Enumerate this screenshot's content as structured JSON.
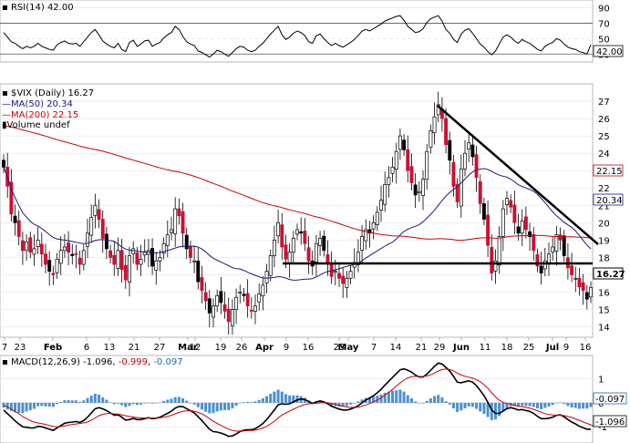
{
  "chart_data": {
    "type": "candlestick",
    "symbol_label": "$VIX (Daily)",
    "last": "16.27",
    "ma50_label": "MA(50)",
    "ma50_value": "20.34",
    "ma200_label": "MA(200)",
    "ma200_value": "22.15",
    "volume_label": "Volume undef",
    "x_ticks": [
      "7",
      "23",
      "Feb",
      "6",
      "13",
      "21",
      "27",
      "Mar",
      "12",
      "19",
      "26",
      "Apr",
      "9",
      "16",
      "23",
      "May",
      "7",
      "14",
      "21",
      "29",
      "Jun",
      "11",
      "18",
      "25",
      "Jul",
      "9",
      "16"
    ],
    "y_ticks": [
      "27",
      "26",
      "25",
      "24",
      "23",
      "22",
      "21",
      "20",
      "19",
      "18",
      "17",
      "16",
      "15",
      "14"
    ],
    "ylim": [
      13.4,
      28.0
    ],
    "closes": [
      23.2,
      22.1,
      20.5,
      20.0,
      19.2,
      18.4,
      18.9,
      18.3,
      18.5,
      19.0,
      18.2,
      17.6,
      17.2,
      17.0,
      17.9,
      18.4,
      18.6,
      18.3,
      18.1,
      18.2,
      17.6,
      18.4,
      19.4,
      20.3,
      21.0,
      20.2,
      19.1,
      18.5,
      18.0,
      17.6,
      18.4,
      17.3,
      16.7,
      18.1,
      18.5,
      17.6,
      17.9,
      18.3,
      18.4,
      17.5,
      17.8,
      18.0,
      18.8,
      19.3,
      19.6,
      20.8,
      20.4,
      19.4,
      18.5,
      18.0,
      17.8,
      16.6,
      16.1,
      15.5,
      14.8,
      15.2,
      15.8,
      15.4,
      14.9,
      14.3,
      15.0,
      15.7,
      16.0,
      15.8,
      15.2,
      14.9,
      15.2,
      15.9,
      16.4,
      17.2,
      18.1,
      19.0,
      20.0,
      18.6,
      17.9,
      18.3,
      19.1,
      19.6,
      19.4,
      18.8,
      17.8,
      17.5,
      18.8,
      19.1,
      18.4,
      17.6,
      16.9,
      17.2,
      16.8,
      16.5,
      16.8,
      17.2,
      17.7,
      18.3,
      19.2,
      19.6,
      19.4,
      20.0,
      20.6,
      21.3,
      22.2,
      22.6,
      23.2,
      24.1,
      25.0,
      24.2,
      23.0,
      22.3,
      21.6,
      21.8,
      22.5,
      24.1,
      25.3,
      26.1,
      26.8,
      26.0,
      24.5,
      23.6,
      22.1,
      21.2,
      23.1,
      24.0,
      24.6,
      23.8,
      22.6,
      21.1,
      20.2,
      18.7,
      17.1,
      17.8,
      19.2,
      20.8,
      21.4,
      20.9,
      20.0,
      19.4,
      20.1,
      19.6,
      19.2,
      18.4,
      17.5,
      17.1,
      17.8,
      18.2,
      18.6,
      19.3,
      19.0,
      18.1,
      17.4,
      17.0,
      16.8,
      16.3,
      16.1,
      15.6,
      16.27
    ],
    "rsi": {
      "label": "RSI(14)",
      "value": "42.00",
      "ticks": [
        "90",
        "70",
        "50",
        "30"
      ],
      "ylim": [
        22,
        98
      ],
      "values": [
        58,
        52,
        46,
        44,
        40,
        37,
        40,
        38,
        40,
        44,
        40,
        38,
        36,
        35,
        42,
        45,
        47,
        44,
        43,
        44,
        40,
        46,
        52,
        58,
        62,
        55,
        47,
        43,
        40,
        38,
        44,
        36,
        33,
        45,
        48,
        40,
        43,
        47,
        48,
        40,
        43,
        45,
        51,
        55,
        58,
        66,
        62,
        53,
        46,
        43,
        41,
        34,
        32,
        29,
        26,
        30,
        35,
        33,
        30,
        27,
        32,
        37,
        40,
        39,
        35,
        33,
        35,
        40,
        44,
        50,
        56,
        61,
        66,
        55,
        49,
        52,
        57,
        60,
        58,
        54,
        46,
        44,
        54,
        56,
        50,
        45,
        41,
        44,
        41,
        39,
        42,
        45,
        49,
        54,
        60,
        62,
        60,
        63,
        66,
        69,
        73,
        75,
        77,
        79,
        80,
        74,
        66,
        62,
        58,
        59,
        63,
        71,
        76,
        78,
        80,
        73,
        62,
        57,
        49,
        45,
        56,
        61,
        63,
        57,
        50,
        43,
        39,
        33,
        29,
        34,
        43,
        52,
        55,
        52,
        47,
        44,
        49,
        46,
        44,
        40,
        36,
        34,
        40,
        43,
        45,
        50,
        48,
        43,
        39,
        37,
        36,
        33,
        32,
        30,
        42
      ]
    },
    "macd": {
      "label": "MACD(12,26,9)",
      "macd_value": "-1.096",
      "signal_value": "-0.999",
      "hist_value": "-0.097",
      "ticks": [
        "1",
        "0",
        "-1"
      ],
      "ylim": [
        -1.6,
        1.9
      ],
      "macd_values": [
        -0.3,
        -0.45,
        -0.6,
        -0.75,
        -0.88,
        -1.0,
        -1.02,
        -1.05,
        -1.05,
        -0.98,
        -1.0,
        -1.05,
        -1.1,
        -1.15,
        -1.05,
        -0.95,
        -0.85,
        -0.82,
        -0.8,
        -0.78,
        -0.82,
        -0.74,
        -0.6,
        -0.42,
        -0.25,
        -0.2,
        -0.25,
        -0.32,
        -0.42,
        -0.52,
        -0.5,
        -0.6,
        -0.72,
        -0.7,
        -0.65,
        -0.7,
        -0.7,
        -0.66,
        -0.62,
        -0.66,
        -0.64,
        -0.6,
        -0.52,
        -0.44,
        -0.35,
        -0.22,
        -0.15,
        -0.16,
        -0.24,
        -0.33,
        -0.42,
        -0.58,
        -0.74,
        -0.92,
        -1.1,
        -1.2,
        -1.22,
        -1.26,
        -1.32,
        -1.4,
        -1.38,
        -1.3,
        -1.2,
        -1.14,
        -1.12,
        -1.12,
        -1.08,
        -0.98,
        -0.86,
        -0.7,
        -0.5,
        -0.3,
        -0.08,
        -0.04,
        -0.06,
        -0.04,
        0.04,
        0.12,
        0.16,
        0.14,
        0.06,
        -0.02,
        0.04,
        0.08,
        0.04,
        -0.04,
        -0.14,
        -0.2,
        -0.26,
        -0.3,
        -0.3,
        -0.26,
        -0.2,
        -0.12,
        0.0,
        0.12,
        0.2,
        0.3,
        0.42,
        0.56,
        0.74,
        0.9,
        1.06,
        1.22,
        1.38,
        1.42,
        1.36,
        1.28,
        1.16,
        1.08,
        1.08,
        1.2,
        1.36,
        1.52,
        1.66,
        1.62,
        1.48,
        1.32,
        1.1,
        0.86,
        0.84,
        0.88,
        0.92,
        0.86,
        0.72,
        0.52,
        0.3,
        0.02,
        -0.3,
        -0.44,
        -0.44,
        -0.34,
        -0.24,
        -0.2,
        -0.24,
        -0.3,
        -0.28,
        -0.32,
        -0.36,
        -0.44,
        -0.56,
        -0.66,
        -0.66,
        -0.64,
        -0.6,
        -0.52,
        -0.5,
        -0.58,
        -0.7,
        -0.8,
        -0.88,
        -0.98,
        -1.04,
        -1.1,
        -1.096
      ],
      "signal_values": [
        -0.1,
        -0.17,
        -0.26,
        -0.36,
        -0.46,
        -0.57,
        -0.66,
        -0.74,
        -0.8,
        -0.84,
        -0.87,
        -0.9,
        -0.94,
        -0.98,
        -1.0,
        -0.99,
        -0.96,
        -0.93,
        -0.9,
        -0.88,
        -0.86,
        -0.84,
        -0.8,
        -0.72,
        -0.63,
        -0.54,
        -0.48,
        -0.45,
        -0.44,
        -0.46,
        -0.47,
        -0.5,
        -0.54,
        -0.57,
        -0.59,
        -0.61,
        -0.63,
        -0.63,
        -0.63,
        -0.63,
        -0.63,
        -0.62,
        -0.6,
        -0.57,
        -0.52,
        -0.46,
        -0.4,
        -0.35,
        -0.33,
        -0.33,
        -0.35,
        -0.4,
        -0.46,
        -0.55,
        -0.66,
        -0.77,
        -0.86,
        -0.94,
        -1.02,
        -1.1,
        -1.15,
        -1.18,
        -1.18,
        -1.17,
        -1.16,
        -1.15,
        -1.14,
        -1.1,
        -1.05,
        -0.98,
        -0.88,
        -0.77,
        -0.63,
        -0.51,
        -0.42,
        -0.35,
        -0.27,
        -0.19,
        -0.12,
        -0.07,
        -0.04,
        -0.03,
        -0.02,
        0.0,
        0.01,
        0.0,
        -0.03,
        -0.06,
        -0.1,
        -0.14,
        -0.17,
        -0.19,
        -0.19,
        -0.18,
        -0.14,
        -0.09,
        -0.03,
        0.04,
        0.12,
        0.21,
        0.32,
        0.44,
        0.56,
        0.7,
        0.83,
        0.95,
        1.04,
        1.09,
        1.1,
        1.1,
        1.1,
        1.12,
        1.17,
        1.24,
        1.33,
        1.39,
        1.41,
        1.39,
        1.33,
        1.24,
        1.16,
        1.11,
        1.07,
        1.03,
        0.97,
        0.88,
        0.76,
        0.61,
        0.42,
        0.25,
        0.11,
        0.02,
        -0.03,
        -0.06,
        -0.1,
        -0.14,
        -0.16,
        -0.19,
        -0.22,
        -0.27,
        -0.33,
        -0.39,
        -0.45,
        -0.49,
        -0.51,
        -0.52,
        -0.52,
        -0.53,
        -0.57,
        -0.61,
        -0.67,
        -0.73,
        -0.8,
        -0.86,
        -0.92,
        -0.999
      ]
    }
  }
}
